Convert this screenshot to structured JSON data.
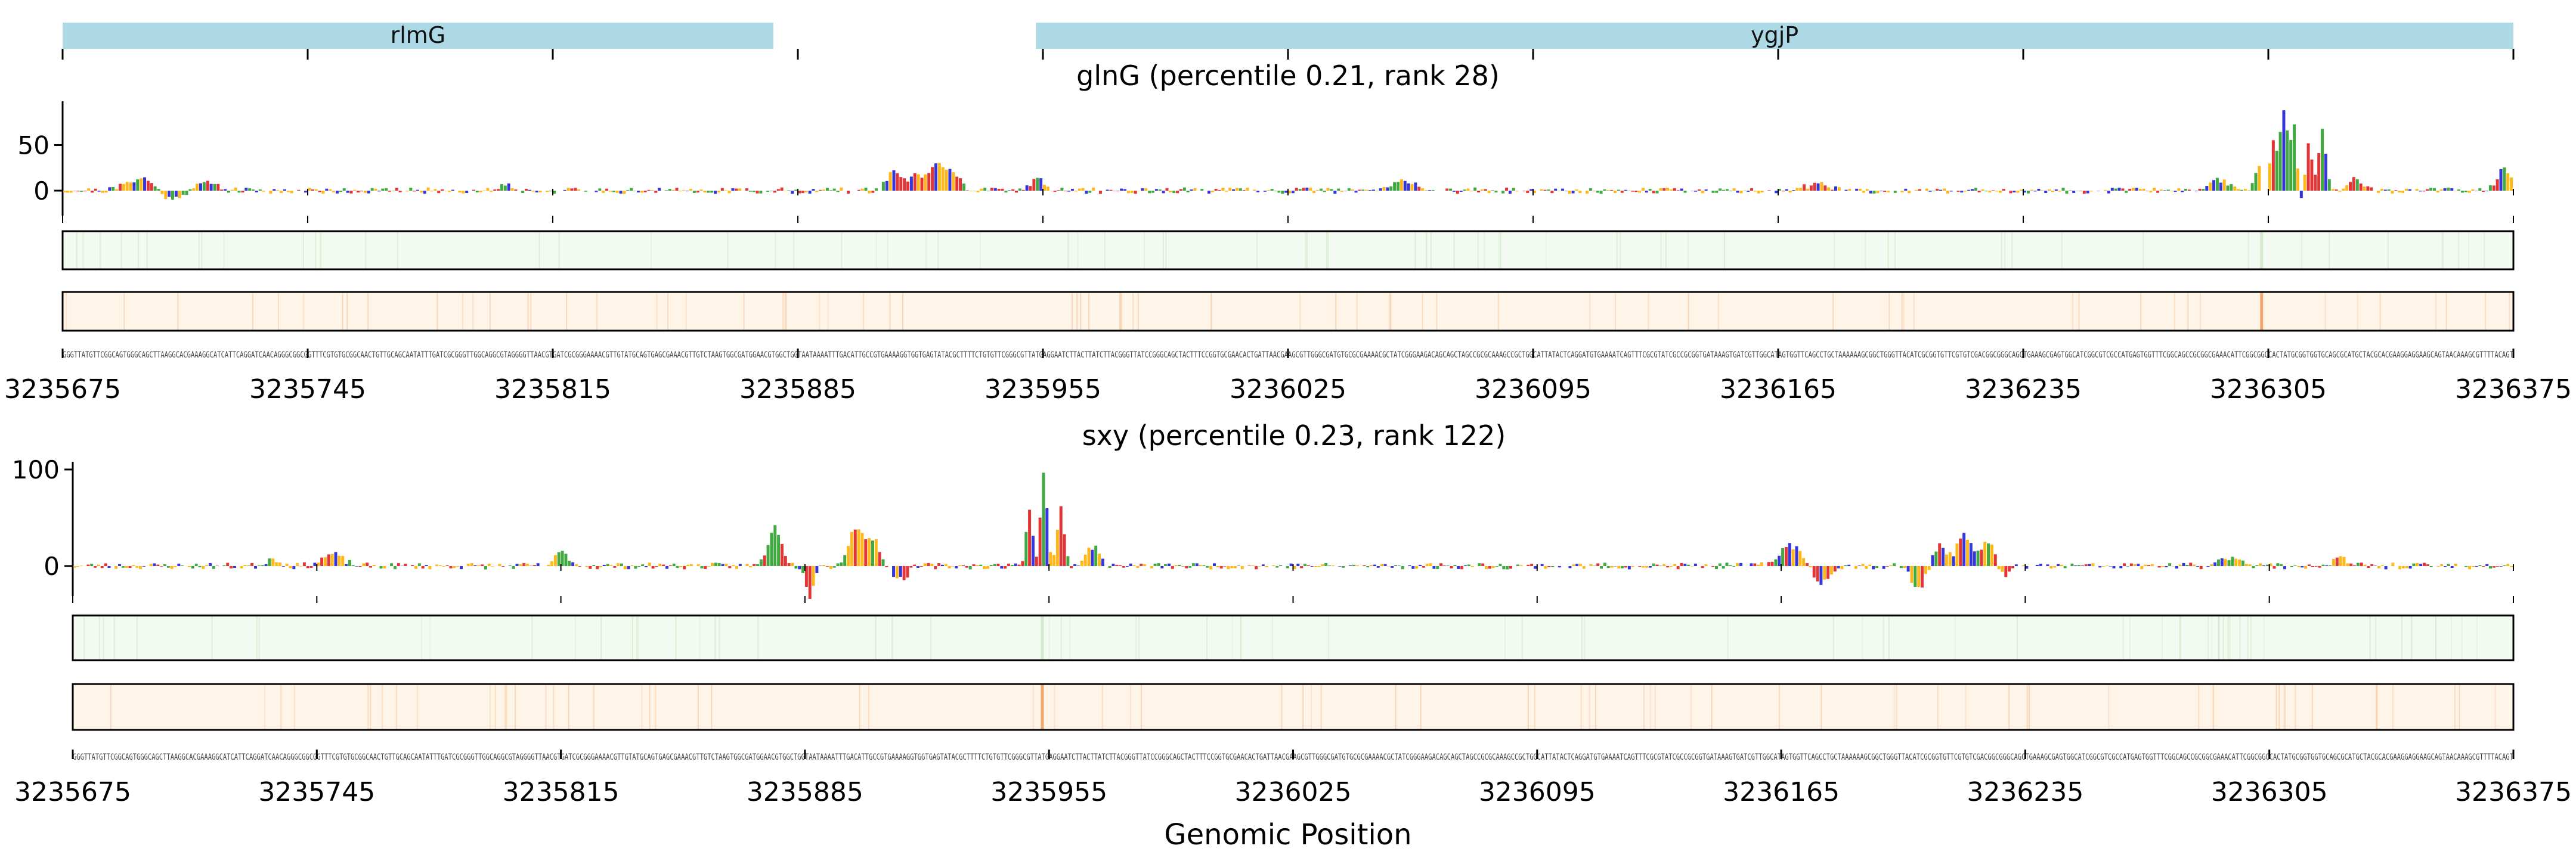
{
  "colors": {
    "A": "#2ca02c",
    "C": "#1f1fd6",
    "G": "#ffb000",
    "T": "#e01f1f",
    "gene_bar": "#add8e6",
    "track_green_bg": "#f3faf1",
    "track_orange_bg": "#fff4e8",
    "track_green_line": "#cfe9c8",
    "track_orange_line": "#f5c9a0",
    "track_orange_peak": "#f0a060"
  },
  "genes": [
    {
      "name": "rlmG",
      "start": 3235675,
      "end": 3235878
    },
    {
      "name": "ygjP",
      "start": 3235953,
      "end": 3236375
    }
  ],
  "xlabel": "Genomic Position",
  "sequence": "GGGTTATGTTCGGCAGTGGGCAGCTTAAGGCACGAAAGGCATCATTCAGGATCAACAGGGCGGCGGTTTCGTGTGCGGCAACTGTTGCAGCAATATTTGATCGCGGGTTGGCAGGCGTAGGGGTTAACGTGATCGCGGGAAAACGTTGTATGCAGTGAGCGAAACGTTGTCTAAGTGGCGATGGAACGTGGCTGGTAATAAAATTTGACATTGCCGTGAAAAGGTGGTGAGTATACGCTTTTCTGTGTTCGGGCGTTATGAGGAATCTTACTTATCTTACGGGTTATCCGGGCAGCTACTTTCCGGTGCGAACACTGATTAACGAAGCGTTGGGCGATGTGCGCGAAAACGCTATCGGGAAGACAGCAGCTAGCCGCGCAAAGCCGCTGGCATTATACTCAGGATGTGAAAATCAGTTTCGCGTATCGCCGCGGTGATAAAGTGATCGTTGGCATAGTGGTTCAGCCTGCTAAAAAAGCGGCTGGGTTACATCGCGGTGTTCGTGTCGACGGCGGGCAGCTGAAAGCGAGTGGCATCGGCGTCGCCATGAGTGGTTTCGGCAGCCGCGGCGAAACATTCGGCGGCCACTATGCGGTGGTGCAGCGCATGCTACGCACGAAGGAGGAAGCAGTAACAAAGCGTTTTACAGT",
  "panels": [
    {
      "id": "glnG",
      "title": "glnG (percentile 0.21, rank 28)",
      "ylim": [
        -28,
        98
      ],
      "yticks": [
        0,
        50
      ],
      "seed": 21,
      "peaks": [
        {
          "pos": 3235697,
          "amp": 14,
          "width": 4
        },
        {
          "pos": 3235705,
          "amp": -10,
          "width": 3
        },
        {
          "pos": 3235716,
          "amp": 9,
          "width": 3
        },
        {
          "pos": 3235801,
          "amp": 7,
          "width": 2
        },
        {
          "pos": 3235912,
          "amp": 22,
          "width": 2
        },
        {
          "pos": 3235918,
          "amp": 16,
          "width": 2
        },
        {
          "pos": 3235924,
          "amp": 30,
          "width": 2
        },
        {
          "pos": 3235929,
          "amp": 20,
          "width": 2
        },
        {
          "pos": 3235953,
          "amp": 14,
          "width": 2
        },
        {
          "pos": 3236058,
          "amp": 12,
          "width": 3
        },
        {
          "pos": 3236176,
          "amp": 9,
          "width": 3
        },
        {
          "pos": 3236290,
          "amp": 12,
          "width": 3
        },
        {
          "pos": 3236302,
          "amp": 40,
          "width": 1
        },
        {
          "pos": 3236306,
          "amp": 58,
          "width": 1
        },
        {
          "pos": 3236309,
          "amp": 88,
          "width": 1
        },
        {
          "pos": 3236312,
          "amp": 72,
          "width": 1
        },
        {
          "pos": 3236316,
          "amp": 55,
          "width": 1
        },
        {
          "pos": 3236320,
          "amp": 68,
          "width": 1
        },
        {
          "pos": 3236303,
          "amp": -22,
          "width": 1
        },
        {
          "pos": 3236314,
          "amp": -28,
          "width": 1
        },
        {
          "pos": 3236329,
          "amp": 12,
          "width": 2
        },
        {
          "pos": 3236372,
          "amp": 24,
          "width": 2
        }
      ],
      "noise": 3.5,
      "track_peaks": [
        3236303
      ]
    },
    {
      "id": "sxy",
      "title": "sxy (percentile 0.23, rank 122)",
      "ylim": [
        -40,
        108
      ],
      "yticks": [
        0,
        100
      ],
      "seed": 23,
      "peaks": [
        {
          "pos": 3235732,
          "amp": 8,
          "width": 2
        },
        {
          "pos": 3235749,
          "amp": 12,
          "width": 3
        },
        {
          "pos": 3235815,
          "amp": 14,
          "width": 2
        },
        {
          "pos": 3235876,
          "amp": 40,
          "width": 2
        },
        {
          "pos": 3235886,
          "amp": -32,
          "width": 1
        },
        {
          "pos": 3235899,
          "amp": 38,
          "width": 2
        },
        {
          "pos": 3235904,
          "amp": 28,
          "width": 2
        },
        {
          "pos": 3235912,
          "amp": -14,
          "width": 2
        },
        {
          "pos": 3235949,
          "amp": 62,
          "width": 1
        },
        {
          "pos": 3235953,
          "amp": 100,
          "width": 1
        },
        {
          "pos": 3235958,
          "amp": 60,
          "width": 1
        },
        {
          "pos": 3235951,
          "amp": -14,
          "width": 1
        },
        {
          "pos": 3235967,
          "amp": 20,
          "width": 2
        },
        {
          "pos": 3236167,
          "amp": 22,
          "width": 3
        },
        {
          "pos": 3236176,
          "amp": -18,
          "width": 2
        },
        {
          "pos": 3236204,
          "amp": -24,
          "width": 2
        },
        {
          "pos": 3236210,
          "amp": 22,
          "width": 2
        },
        {
          "pos": 3236217,
          "amp": 32,
          "width": 2
        },
        {
          "pos": 3236224,
          "amp": 28,
          "width": 2
        },
        {
          "pos": 3236228,
          "amp": -12,
          "width": 2
        },
        {
          "pos": 3236294,
          "amp": 10,
          "width": 3
        },
        {
          "pos": 3236325,
          "amp": 8,
          "width": 2
        }
      ],
      "noise": 3.5,
      "track_peaks": [
        3235953
      ]
    }
  ],
  "x_ticks": [
    3235675,
    3235745,
    3235815,
    3235885,
    3235955,
    3236025,
    3236095,
    3236165,
    3236235,
    3236305,
    3236375
  ],
  "chart_data": {
    "type": "line",
    "description_axes": "Sequence logo attribution tracks vs genomic position",
    "xlabel": "Genomic Position",
    "xlim": [
      3235675,
      3236375
    ],
    "series": [
      {
        "name": "glnG (percentile 0.21, rank 28)",
        "x": [
          3235697,
          3235912,
          3235924,
          3235953,
          3236058,
          3236290,
          3236306,
          3236309,
          3236312,
          3236320,
          3236372
        ],
        "values": [
          14,
          22,
          30,
          14,
          12,
          12,
          58,
          88,
          72,
          68,
          24
        ]
      },
      {
        "name": "sxy (percentile 0.23, rank 122)",
        "x": [
          3235749,
          3235876,
          3235886,
          3235899,
          3235949,
          3235953,
          3235958,
          3236167,
          3236204,
          3236217,
          3236224
        ],
        "values": [
          12,
          40,
          -32,
          38,
          62,
          100,
          60,
          22,
          -24,
          32,
          28
        ]
      }
    ]
  }
}
